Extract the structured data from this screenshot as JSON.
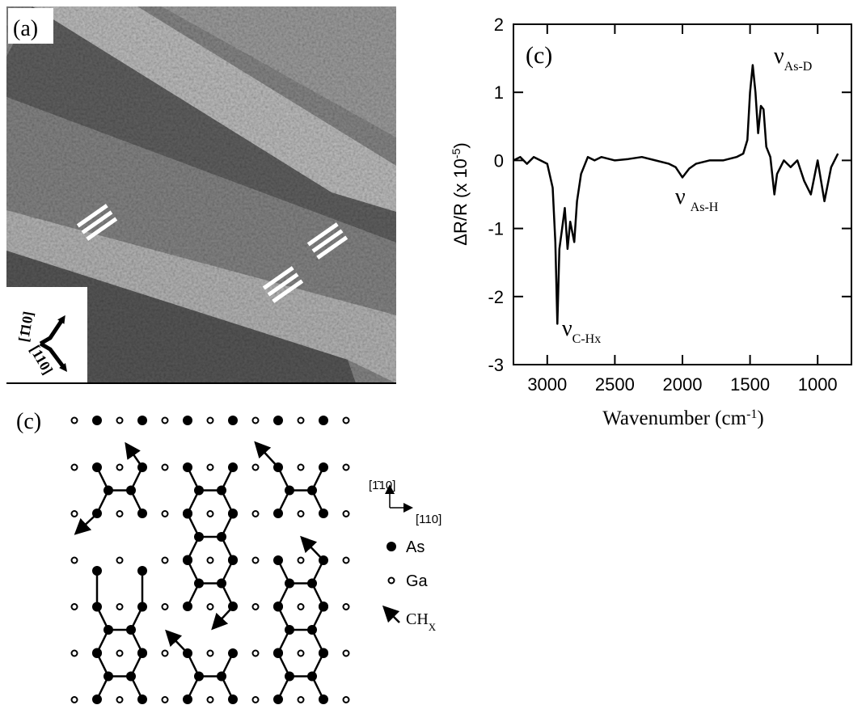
{
  "stm": {
    "label": "(a)",
    "dir_up": "[1̄10]",
    "dir_down": "[110]"
  },
  "chart_data": {
    "type": "line",
    "label": "(c)",
    "ylabel": "ΔR/R (x 10",
    "ylabel_sup": "-5",
    "ylabel_end": ")",
    "xlabel": "Wavenumber (cm",
    "xlabel_sup": "-1",
    "xlabel_end": ")",
    "x": [
      3250,
      3200,
      3150,
      3100,
      3050,
      3000,
      2960,
      2940,
      2925,
      2910,
      2890,
      2870,
      2850,
      2830,
      2800,
      2780,
      2750,
      2700,
      2650,
      2600,
      2500,
      2400,
      2300,
      2200,
      2100,
      2050,
      2000,
      1950,
      1900,
      1800,
      1700,
      1600,
      1550,
      1520,
      1500,
      1480,
      1460,
      1440,
      1420,
      1400,
      1380,
      1350,
      1320,
      1300,
      1250,
      1200,
      1150,
      1100,
      1050,
      1000,
      950,
      900,
      850
    ],
    "values": [
      0.0,
      0.05,
      -0.05,
      0.05,
      0.0,
      -0.05,
      -0.4,
      -1.2,
      -2.4,
      -1.3,
      -1.0,
      -0.7,
      -1.3,
      -0.9,
      -1.2,
      -0.6,
      -0.2,
      0.05,
      0.0,
      0.05,
      0.0,
      0.02,
      0.05,
      0.0,
      -0.05,
      -0.1,
      -0.25,
      -0.12,
      -0.05,
      0.0,
      0.0,
      0.05,
      0.1,
      0.3,
      1.0,
      1.4,
      1.0,
      0.4,
      0.8,
      0.75,
      0.2,
      0.05,
      -0.5,
      -0.2,
      0.0,
      -0.1,
      0.0,
      -0.3,
      -0.5,
      0.0,
      -0.6,
      -0.1,
      0.1
    ],
    "xlim": [
      3250,
      750
    ],
    "ylim": [
      -3,
      2
    ],
    "xticks": [
      3000,
      2500,
      2000,
      1500,
      1000
    ],
    "yticks": [
      -3,
      -2,
      -1,
      0,
      1,
      2
    ],
    "color": "#000000",
    "annotations": [
      {
        "symbol": "ν",
        "sub": "As-D"
      },
      {
        "symbol": "ν",
        "sub": "As-H"
      },
      {
        "symbol": "ν",
        "sub": "C-Hx"
      }
    ]
  },
  "diagram": {
    "label": "(c)",
    "axis_up": "[1̄10]",
    "axis_right": "[110]",
    "legend": [
      {
        "label": "As"
      },
      {
        "label": "Ga"
      },
      {
        "label": "CH",
        "sub": "X"
      }
    ]
  }
}
